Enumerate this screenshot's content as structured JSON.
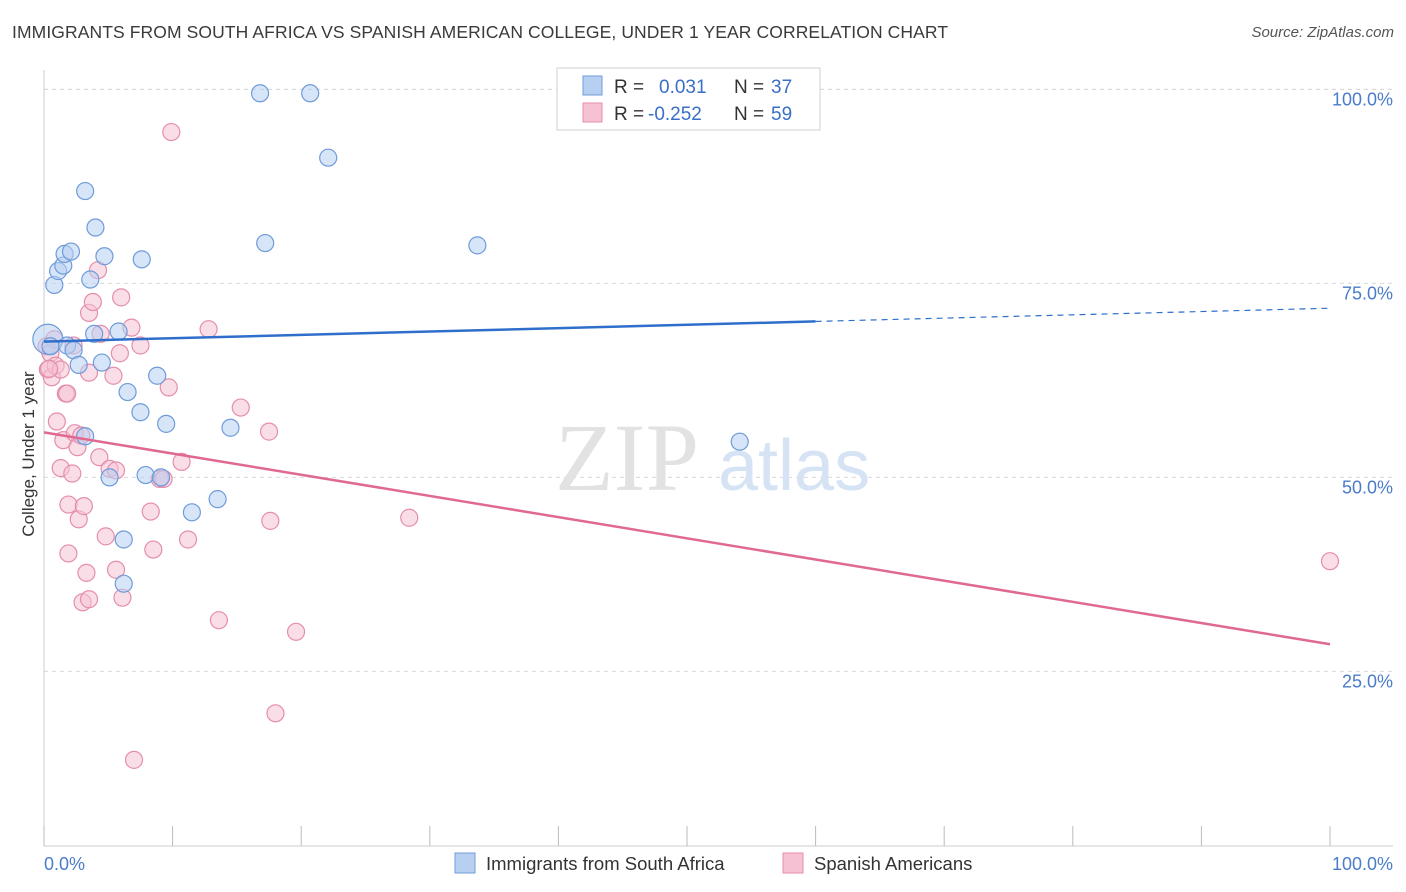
{
  "header": {
    "title": "IMMIGRANTS FROM SOUTH AFRICA VS SPANISH AMERICAN COLLEGE, UNDER 1 YEAR CORRELATION CHART",
    "source": "Source: ZipAtlas.com"
  },
  "watermark": {
    "zip": "ZIP",
    "atlas": "atlas"
  },
  "legend": {
    "rows": [
      {
        "r_label": "R =",
        "r_value": "0.031",
        "n_label": "N =",
        "n_value": "37"
      },
      {
        "r_label": "R =",
        "r_value": "-0.252",
        "n_label": "N =",
        "n_value": "59"
      }
    ]
  },
  "bottom_legend": {
    "series1": "Immigrants from South Africa",
    "series2": "Spanish Americans"
  },
  "chart_data": {
    "type": "scatter",
    "title": "IMMIGRANTS FROM SOUTH AFRICA VS SPANISH AMERICAN COLLEGE, UNDER 1 YEAR CORRELATION CHART",
    "xlabel": "",
    "ylabel": "College, Under 1 year",
    "xlim": [
      0,
      100
    ],
    "ylim": [
      2.5,
      102.5
    ],
    "x_tick_labels": [
      "0.0%",
      "100.0%"
    ],
    "y_ticks": [
      25,
      50,
      75,
      100
    ],
    "y_tick_labels": [
      "25.0%",
      "50.0%",
      "75.0%",
      "100.0%"
    ],
    "grid": true,
    "legend_position": "top-center",
    "colors": {
      "series1_fill": "#b7d0f2",
      "series1_stroke": "#6f9bd9",
      "series1_line": "#2f6fcb",
      "series2_fill": "#f6c2d3",
      "series2_stroke": "#e58eab",
      "series2_line": "#e0698f",
      "tick_label": "#4a7cc9",
      "grid": "#d9d9d9"
    },
    "series": [
      {
        "name": "Immigrants from South Africa",
        "r": 0.031,
        "n": 37,
        "trend": {
          "x": [
            0,
            60
          ],
          "y": [
            67.5,
            70.1
          ],
          "dashed_to": {
            "x": 100,
            "y": 71.8
          }
        },
        "points": [
          {
            "x": 0.3,
            "y": 67.8,
            "big": true
          },
          {
            "x": 0.8,
            "y": 74.8
          },
          {
            "x": 1.1,
            "y": 76.6
          },
          {
            "x": 1.5,
            "y": 77.3
          },
          {
            "x": 1.6,
            "y": 78.8
          },
          {
            "x": 2.1,
            "y": 79.1
          },
          {
            "x": 1.8,
            "y": 67.0
          },
          {
            "x": 2.3,
            "y": 66.4
          },
          {
            "x": 2.7,
            "y": 64.5
          },
          {
            "x": 3.2,
            "y": 55.3
          },
          {
            "x": 3.2,
            "y": 86.9
          },
          {
            "x": 3.6,
            "y": 75.5
          },
          {
            "x": 3.9,
            "y": 68.5
          },
          {
            "x": 4.0,
            "y": 82.2
          },
          {
            "x": 4.5,
            "y": 64.8
          },
          {
            "x": 4.7,
            "y": 78.5
          },
          {
            "x": 5.1,
            "y": 50.0
          },
          {
            "x": 5.8,
            "y": 68.8
          },
          {
            "x": 6.2,
            "y": 42.0
          },
          {
            "x": 6.2,
            "y": 36.3
          },
          {
            "x": 6.5,
            "y": 61.0
          },
          {
            "x": 7.5,
            "y": 58.4
          },
          {
            "x": 7.6,
            "y": 78.1
          },
          {
            "x": 7.9,
            "y": 50.3
          },
          {
            "x": 8.8,
            "y": 63.1
          },
          {
            "x": 9.1,
            "y": 50.0
          },
          {
            "x": 9.5,
            "y": 56.9
          },
          {
            "x": 11.5,
            "y": 45.5
          },
          {
            "x": 13.5,
            "y": 47.2
          },
          {
            "x": 14.5,
            "y": 56.4
          },
          {
            "x": 16.8,
            "y": 99.5
          },
          {
            "x": 17.2,
            "y": 80.2
          },
          {
            "x": 20.7,
            "y": 99.5
          },
          {
            "x": 22.1,
            "y": 91.2
          },
          {
            "x": 33.7,
            "y": 79.9
          },
          {
            "x": 54.1,
            "y": 54.6
          },
          {
            "x": 0.5,
            "y": 66.9
          }
        ]
      },
      {
        "name": "Spanish Americans",
        "r": -0.252,
        "n": 59,
        "trend": {
          "x": [
            0,
            100
          ],
          "y": [
            55.8,
            28.5
          ]
        },
        "points": [
          {
            "x": 0.2,
            "y": 66.9
          },
          {
            "x": 0.3,
            "y": 63.9
          },
          {
            "x": 0.5,
            "y": 66.0
          },
          {
            "x": 0.6,
            "y": 62.9
          },
          {
            "x": 0.8,
            "y": 67.8
          },
          {
            "x": 0.9,
            "y": 64.4
          },
          {
            "x": 1.0,
            "y": 57.2
          },
          {
            "x": 1.3,
            "y": 63.9
          },
          {
            "x": 1.3,
            "y": 51.2
          },
          {
            "x": 1.5,
            "y": 54.8
          },
          {
            "x": 1.7,
            "y": 60.8
          },
          {
            "x": 1.8,
            "y": 60.8
          },
          {
            "x": 1.9,
            "y": 46.5
          },
          {
            "x": 1.9,
            "y": 40.2
          },
          {
            "x": 2.2,
            "y": 50.5
          },
          {
            "x": 2.3,
            "y": 67.0
          },
          {
            "x": 2.4,
            "y": 55.7
          },
          {
            "x": 2.6,
            "y": 53.9
          },
          {
            "x": 2.7,
            "y": 44.6
          },
          {
            "x": 2.9,
            "y": 55.4
          },
          {
            "x": 3.0,
            "y": 33.9
          },
          {
            "x": 3.1,
            "y": 46.3
          },
          {
            "x": 3.3,
            "y": 37.7
          },
          {
            "x": 3.5,
            "y": 63.5
          },
          {
            "x": 3.5,
            "y": 34.3
          },
          {
            "x": 3.5,
            "y": 71.2
          },
          {
            "x": 3.8,
            "y": 72.6
          },
          {
            "x": 4.2,
            "y": 76.7
          },
          {
            "x": 4.3,
            "y": 52.6
          },
          {
            "x": 4.4,
            "y": 68.5
          },
          {
            "x": 4.8,
            "y": 42.4
          },
          {
            "x": 5.1,
            "y": 51.1
          },
          {
            "x": 5.4,
            "y": 63.1
          },
          {
            "x": 5.6,
            "y": 50.9
          },
          {
            "x": 5.6,
            "y": 38.1
          },
          {
            "x": 5.9,
            "y": 66.0
          },
          {
            "x": 6.0,
            "y": 73.2
          },
          {
            "x": 6.1,
            "y": 34.5
          },
          {
            "x": 7.0,
            "y": 13.6
          },
          {
            "x": 6.8,
            "y": 69.3
          },
          {
            "x": 7.5,
            "y": 67.0
          },
          {
            "x": 8.3,
            "y": 45.6
          },
          {
            "x": 8.5,
            "y": 40.7
          },
          {
            "x": 9.0,
            "y": 49.8
          },
          {
            "x": 9.3,
            "y": 49.8
          },
          {
            "x": 9.7,
            "y": 61.6
          },
          {
            "x": 9.9,
            "y": 94.5
          },
          {
            "x": 10.7,
            "y": 52.0
          },
          {
            "x": 11.2,
            "y": 42.0
          },
          {
            "x": 12.8,
            "y": 69.1
          },
          {
            "x": 13.6,
            "y": 31.6
          },
          {
            "x": 15.3,
            "y": 59.0
          },
          {
            "x": 17.5,
            "y": 55.9
          },
          {
            "x": 17.6,
            "y": 44.4
          },
          {
            "x": 18.0,
            "y": 19.6
          },
          {
            "x": 19.6,
            "y": 30.1
          },
          {
            "x": 28.4,
            "y": 44.8
          },
          {
            "x": 100.0,
            "y": 39.2
          },
          {
            "x": 0.4,
            "y": 64.0
          }
        ]
      }
    ]
  }
}
